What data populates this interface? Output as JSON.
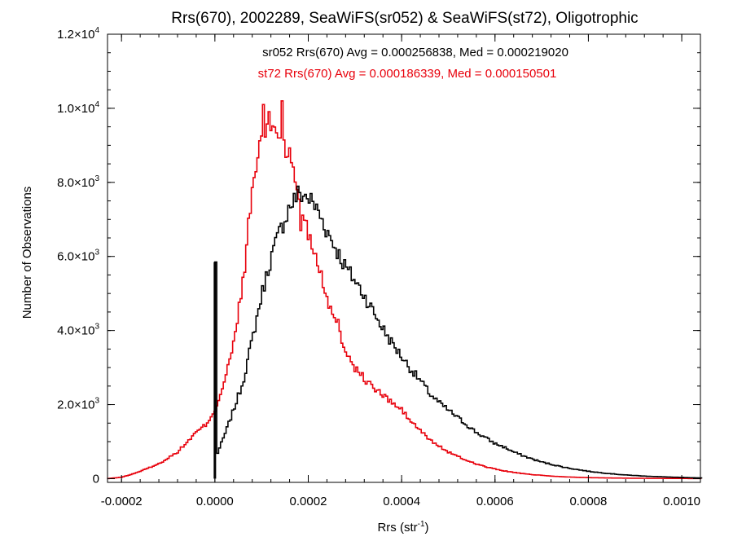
{
  "chart_data": {
    "type": "histogram",
    "title": "Rrs(670), 2002289, SeaWiFS(sr052) & SeaWiFS(st72), Oligotrophic",
    "xlabel": {
      "base": "Rrs (str",
      "sup": "-1",
      "close": ")"
    },
    "ylabel": "Number of Observations",
    "xlim": [
      -0.00023,
      0.00104
    ],
    "ylim": [
      -100,
      12000
    ],
    "x_ticks": [
      {
        "value": -0.0002,
        "label": "-0.0002"
      },
      {
        "value": 0.0,
        "label": "0.0000"
      },
      {
        "value": 0.0002,
        "label": "0.0002"
      },
      {
        "value": 0.0004,
        "label": "0.0004"
      },
      {
        "value": 0.0006,
        "label": "0.0006"
      },
      {
        "value": 0.0008,
        "label": "0.0008"
      },
      {
        "value": 0.001,
        "label": "0.0010"
      }
    ],
    "y_ticks": [
      {
        "value": 0,
        "mantissa": "0",
        "exp": ""
      },
      {
        "value": 2000,
        "mantissa": "2.0×10",
        "exp": "3"
      },
      {
        "value": 4000,
        "mantissa": "4.0×10",
        "exp": "3"
      },
      {
        "value": 6000,
        "mantissa": "6.0×10",
        "exp": "3"
      },
      {
        "value": 8000,
        "mantissa": "8.0×10",
        "exp": "3"
      },
      {
        "value": 10000,
        "mantissa": "1.0×10",
        "exp": "4"
      },
      {
        "value": 12000,
        "mantissa": "1.2×10",
        "exp": "4"
      }
    ],
    "grid": false,
    "series": [
      {
        "name": "sr052",
        "color": "#000000",
        "stats_label": "sr052 Rrs(670) Avg = 0.000256838, Med = 0.000219020",
        "avg": 0.000256838,
        "median": 0.00021902,
        "spikes": [
          {
            "x": 0.0,
            "y": 5850
          }
        ],
        "points": [
          [
            0.0,
            500
          ],
          [
            2e-05,
            1150
          ],
          [
            4e-05,
            1850
          ],
          [
            6e-05,
            2600
          ],
          [
            8e-05,
            3750
          ],
          [
            0.0001,
            4950
          ],
          [
            0.00012,
            5950
          ],
          [
            0.00014,
            6700
          ],
          [
            0.00016,
            7350
          ],
          [
            0.00018,
            7700
          ],
          [
            0.0002,
            7600
          ],
          [
            0.00022,
            7250
          ],
          [
            0.00024,
            6700
          ],
          [
            0.00026,
            6200
          ],
          [
            0.00028,
            5700
          ],
          [
            0.0003,
            5350
          ],
          [
            0.00032,
            4950
          ],
          [
            0.00034,
            4500
          ],
          [
            0.00036,
            4050
          ],
          [
            0.00038,
            3650
          ],
          [
            0.0004,
            3300
          ],
          [
            0.00042,
            2950
          ],
          [
            0.00044,
            2650
          ],
          [
            0.00046,
            2300
          ],
          [
            0.00048,
            2050
          ],
          [
            0.0005,
            1850
          ],
          [
            0.00052,
            1650
          ],
          [
            0.00054,
            1450
          ],
          [
            0.00056,
            1250
          ],
          [
            0.00058,
            1100
          ],
          [
            0.0006,
            950
          ],
          [
            0.00062,
            850
          ],
          [
            0.00064,
            720
          ],
          [
            0.00066,
            620
          ],
          [
            0.00068,
            530
          ],
          [
            0.0007,
            450
          ],
          [
            0.00072,
            390
          ],
          [
            0.00074,
            330
          ],
          [
            0.00076,
            280
          ],
          [
            0.00078,
            240
          ],
          [
            0.0008,
            200
          ],
          [
            0.00082,
            170
          ],
          [
            0.00084,
            145
          ],
          [
            0.00086,
            120
          ],
          [
            0.00088,
            100
          ],
          [
            0.0009,
            85
          ],
          [
            0.00092,
            70
          ],
          [
            0.00094,
            60
          ],
          [
            0.00096,
            50
          ],
          [
            0.00098,
            40
          ],
          [
            0.001,
            35
          ],
          [
            0.00102,
            25
          ],
          [
            0.00104,
            20
          ]
        ]
      },
      {
        "name": "st72",
        "color": "#e8000b",
        "stats_label": "st72 Rrs(670) Avg = 0.000186339, Med = 0.000150501",
        "avg": 0.000186339,
        "median": 0.000150501,
        "spikes": [
          {
            "x": 0.000102,
            "y": 10100
          },
          {
            "x": 0.000142,
            "y": 10200
          },
          {
            "x": 0.000182,
            "y": 6700
          },
          {
            "x": 0.000262,
            "y": 4300
          }
        ],
        "points": [
          [
            -0.00023,
            0
          ],
          [
            -0.0002,
            40
          ],
          [
            -0.00018,
            110
          ],
          [
            -0.00016,
            200
          ],
          [
            -0.00014,
            300
          ],
          [
            -0.00012,
            400
          ],
          [
            -0.0001,
            560
          ],
          [
            -8e-05,
            720
          ],
          [
            -6e-05,
            980
          ],
          [
            -4e-05,
            1250
          ],
          [
            -2e-05,
            1450
          ],
          [
            0.0,
            1850
          ],
          [
            2e-05,
            2600
          ],
          [
            4e-05,
            3600
          ],
          [
            6e-05,
            5300
          ],
          [
            8e-05,
            7750
          ],
          [
            0.0001,
            9300
          ],
          [
            0.00012,
            9600
          ],
          [
            0.00014,
            9300
          ],
          [
            0.00016,
            8700
          ],
          [
            0.00018,
            7600
          ],
          [
            0.0002,
            6650
          ],
          [
            0.00022,
            5900
          ],
          [
            0.00024,
            4950
          ],
          [
            0.00026,
            4100
          ],
          [
            0.00028,
            3500
          ],
          [
            0.0003,
            3000
          ],
          [
            0.00032,
            2700
          ],
          [
            0.00034,
            2450
          ],
          [
            0.00036,
            2250
          ],
          [
            0.00038,
            2050
          ],
          [
            0.0004,
            1850
          ],
          [
            0.00042,
            1550
          ],
          [
            0.00044,
            1300
          ],
          [
            0.00046,
            1050
          ],
          [
            0.00048,
            880
          ],
          [
            0.0005,
            720
          ],
          [
            0.00052,
            600
          ],
          [
            0.00054,
            490
          ],
          [
            0.00056,
            400
          ],
          [
            0.00058,
            320
          ],
          [
            0.0006,
            260
          ],
          [
            0.00062,
            210
          ],
          [
            0.00064,
            170
          ],
          [
            0.00066,
            135
          ],
          [
            0.00068,
            110
          ],
          [
            0.0007,
            90
          ],
          [
            0.00072,
            70
          ],
          [
            0.00074,
            55
          ],
          [
            0.00076,
            45
          ],
          [
            0.00078,
            35
          ],
          [
            0.0008,
            28
          ],
          [
            0.00084,
            20
          ],
          [
            0.00088,
            14
          ],
          [
            0.00092,
            10
          ],
          [
            0.00096,
            7
          ],
          [
            0.001,
            5
          ],
          [
            0.00104,
            3
          ]
        ]
      }
    ]
  }
}
